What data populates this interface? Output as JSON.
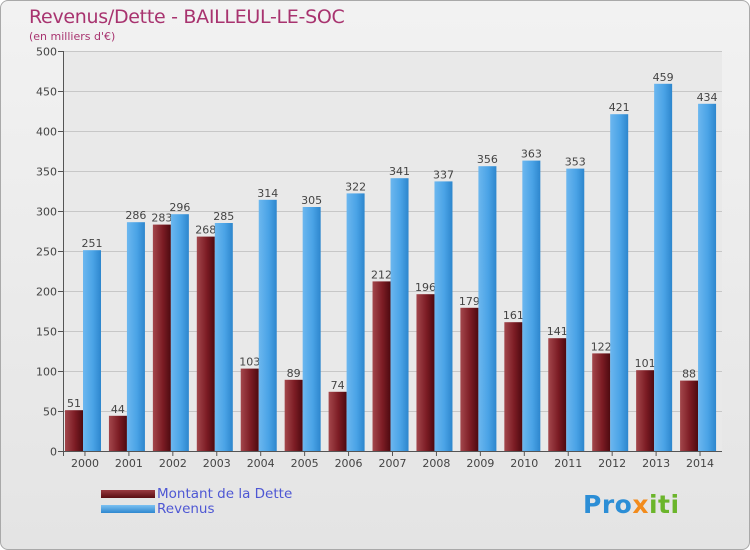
{
  "title": "Revenus/Dette - BAILLEUL-LE-SOC",
  "subtitle": "(en milliers d'€)",
  "logo": {
    "text": "Proxiti",
    "parts": [
      "Pro",
      "x",
      "iti"
    ]
  },
  "colors": {
    "title": "#a8336f",
    "debt": "#7c1c24",
    "revenue": "#4aa3e6",
    "legend_text": "#4e57d4",
    "grid": "#c7c7c7"
  },
  "chart_data": {
    "type": "bar",
    "title": "Revenus/Dette - BAILLEUL-LE-SOC",
    "subtitle": "(en milliers d'€)",
    "xlabel": "",
    "ylabel": "",
    "ylim": [
      0,
      500
    ],
    "ytick_step": 50,
    "grid": true,
    "categories": [
      "2000",
      "2001",
      "2002",
      "2003",
      "2004",
      "2005",
      "2006",
      "2007",
      "2008",
      "2009",
      "2010",
      "2011",
      "2012",
      "2013",
      "2014"
    ],
    "series": [
      {
        "name": "Montant de la Dette",
        "values": [
          51,
          44,
          283,
          268,
          103,
          89,
          74,
          212,
          196,
          179,
          161,
          141,
          122,
          101,
          88
        ]
      },
      {
        "name": "Revenus",
        "values": [
          251,
          286,
          296,
          285,
          314,
          305,
          322,
          341,
          337,
          356,
          363,
          353,
          421,
          459,
          434
        ]
      }
    ],
    "legend_position": "bottom-left"
  }
}
